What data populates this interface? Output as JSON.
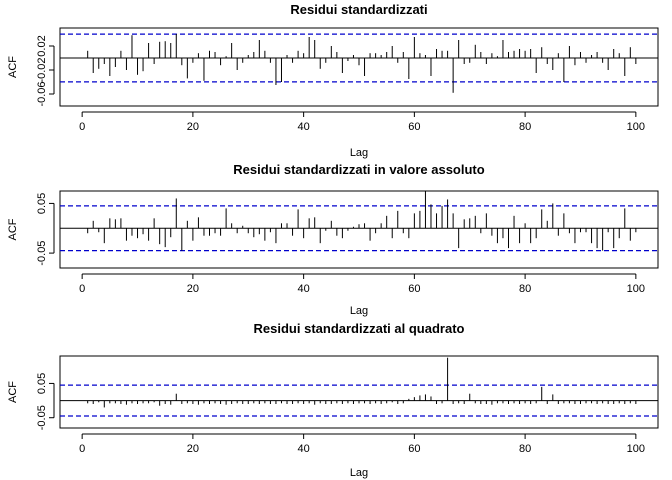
{
  "chart_data": [
    {
      "type": "bar",
      "title": "Residui standardizzati",
      "xlabel": "Lag",
      "ylabel": "ACF",
      "xlim": [
        -4,
        104
      ],
      "ylim": [
        -0.08,
        0.05
      ],
      "xticks": [
        0,
        20,
        40,
        60,
        80,
        100
      ],
      "yticks": [
        -0.06,
        -0.02,
        0.02
      ],
      "ytick_labels": [
        "-0.06",
        "-0.02",
        "0.02"
      ],
      "conf_band": 0.0398,
      "lags": [
        1,
        2,
        3,
        4,
        5,
        6,
        7,
        8,
        9,
        10,
        11,
        12,
        13,
        14,
        15,
        16,
        17,
        18,
        19,
        20,
        21,
        22,
        23,
        24,
        25,
        26,
        27,
        28,
        29,
        30,
        31,
        32,
        33,
        34,
        35,
        36,
        37,
        38,
        39,
        40,
        41,
        42,
        43,
        44,
        45,
        46,
        47,
        48,
        49,
        50,
        51,
        52,
        53,
        54,
        55,
        56,
        57,
        58,
        59,
        60,
        61,
        62,
        63,
        64,
        65,
        66,
        67,
        68,
        69,
        70,
        71,
        72,
        73,
        74,
        75,
        76,
        77,
        78,
        79,
        80,
        81,
        82,
        83,
        84,
        85,
        86,
        87,
        88,
        89,
        90,
        91,
        92,
        93,
        94,
        95,
        96,
        97,
        98,
        99,
        100
      ],
      "values": [
        0.012,
        -0.025,
        -0.018,
        -0.01,
        -0.03,
        -0.015,
        0.012,
        -0.02,
        0.038,
        -0.028,
        -0.022,
        0.025,
        -0.01,
        0.027,
        0.028,
        0.025,
        0.04,
        -0.012,
        -0.034,
        -0.008,
        0.008,
        -0.038,
        0.012,
        0.01,
        -0.012,
        0.003,
        0.025,
        -0.02,
        -0.008,
        0.005,
        0.01,
        0.03,
        0.012,
        -0.008,
        -0.045,
        -0.04,
        0.005,
        -0.008,
        0.012,
        0.008,
        0.035,
        0.03,
        -0.018,
        -0.008,
        0.02,
        0.01,
        -0.025,
        -0.005,
        0.005,
        -0.012,
        -0.03,
        0.008,
        0.008,
        0.005,
        0.01,
        0.02,
        -0.008,
        0.01,
        -0.035,
        0.035,
        0.008,
        0.005,
        -0.03,
        0.015,
        0.012,
        0.012,
        -0.058,
        0.03,
        -0.01,
        -0.008,
        0.022,
        0.01,
        -0.01,
        0.008,
        0.003,
        0.03,
        0.01,
        0.012,
        0.015,
        0.012,
        0.015,
        -0.025,
        0.018,
        -0.01,
        -0.02,
        0.008,
        -0.04,
        0.02,
        -0.012,
        0.01,
        -0.008,
        0.005,
        0.01,
        -0.008,
        -0.02,
        0.015,
        0.008,
        -0.03,
        0.018,
        -0.01
      ]
    },
    {
      "type": "bar",
      "title": "Residui standardizzati in valore assoluto",
      "xlabel": "Lag",
      "ylabel": "ACF",
      "xlim": [
        -4,
        104
      ],
      "ylim": [
        -0.08,
        0.075
      ],
      "xticks": [
        0,
        20,
        40,
        60,
        80,
        100
      ],
      "yticks": [
        -0.05,
        0.05
      ],
      "ytick_labels": [
        "-0.05",
        "0.05"
      ],
      "conf_band": 0.045,
      "lags": [
        1,
        2,
        3,
        4,
        5,
        6,
        7,
        8,
        9,
        10,
        11,
        12,
        13,
        14,
        15,
        16,
        17,
        18,
        19,
        20,
        21,
        22,
        23,
        24,
        25,
        26,
        27,
        28,
        29,
        30,
        31,
        32,
        33,
        34,
        35,
        36,
        37,
        38,
        39,
        40,
        41,
        42,
        43,
        44,
        45,
        46,
        47,
        48,
        49,
        50,
        51,
        52,
        53,
        54,
        55,
        56,
        57,
        58,
        59,
        60,
        61,
        62,
        63,
        64,
        65,
        66,
        67,
        68,
        69,
        70,
        71,
        72,
        73,
        74,
        75,
        76,
        77,
        78,
        79,
        80,
        81,
        82,
        83,
        84,
        85,
        86,
        87,
        88,
        89,
        90,
        91,
        92,
        93,
        94,
        95,
        96,
        97,
        98,
        99,
        100
      ],
      "values": [
        -0.01,
        0.015,
        -0.008,
        -0.03,
        0.02,
        0.018,
        0.02,
        -0.025,
        -0.015,
        -0.02,
        -0.012,
        -0.025,
        0.02,
        -0.032,
        -0.038,
        -0.018,
        0.06,
        -0.045,
        0.015,
        -0.025,
        0.022,
        -0.015,
        -0.015,
        -0.01,
        -0.015,
        0.04,
        0.01,
        -0.01,
        0.005,
        -0.01,
        -0.018,
        -0.012,
        -0.025,
        -0.008,
        -0.03,
        0.01,
        0.01,
        -0.015,
        0.038,
        -0.02,
        0.02,
        0.022,
        -0.03,
        -0.005,
        0.015,
        -0.015,
        -0.02,
        -0.005,
        0.003,
        0.008,
        0.01,
        -0.025,
        -0.01,
        0.01,
        0.025,
        -0.02,
        0.035,
        -0.01,
        -0.02,
        0.03,
        0.035,
        0.075,
        0.048,
        0.03,
        0.045,
        0.058,
        0.03,
        -0.04,
        0.018,
        0.02,
        0.025,
        -0.01,
        0.03,
        -0.015,
        -0.03,
        -0.02,
        -0.04,
        0.025,
        -0.03,
        0.01,
        -0.03,
        -0.02,
        0.038,
        0.015,
        0.05,
        -0.015,
        0.03,
        -0.01,
        -0.03,
        -0.008,
        -0.008,
        -0.03,
        -0.04,
        -0.045,
        -0.008,
        -0.04,
        -0.02,
        0.04,
        -0.025,
        -0.008
      ]
    },
    {
      "type": "bar",
      "title": "Residui standardizzati al quadrato",
      "xlabel": "Lag",
      "ylabel": "ACF",
      "xlim": [
        -4,
        104
      ],
      "ylim": [
        -0.08,
        0.13
      ],
      "xticks": [
        0,
        20,
        40,
        60,
        80,
        100
      ],
      "yticks": [
        -0.05,
        0.05
      ],
      "ytick_labels": [
        "-0.05",
        "0.05"
      ],
      "conf_band": 0.045,
      "lags": [
        1,
        2,
        3,
        4,
        5,
        6,
        7,
        8,
        9,
        10,
        11,
        12,
        13,
        14,
        15,
        16,
        17,
        18,
        19,
        20,
        21,
        22,
        23,
        24,
        25,
        26,
        27,
        28,
        29,
        30,
        31,
        32,
        33,
        34,
        35,
        36,
        37,
        38,
        39,
        40,
        41,
        42,
        43,
        44,
        45,
        46,
        47,
        48,
        49,
        50,
        51,
        52,
        53,
        54,
        55,
        56,
        57,
        58,
        59,
        60,
        61,
        62,
        63,
        64,
        65,
        66,
        67,
        68,
        69,
        70,
        71,
        72,
        73,
        74,
        75,
        76,
        77,
        78,
        79,
        80,
        81,
        82,
        83,
        84,
        85,
        86,
        87,
        88,
        89,
        90,
        91,
        92,
        93,
        94,
        95,
        96,
        97,
        98,
        99,
        100
      ],
      "values": [
        -0.008,
        -0.01,
        -0.005,
        -0.02,
        -0.008,
        -0.008,
        -0.01,
        -0.012,
        -0.008,
        -0.01,
        -0.008,
        -0.008,
        -0.005,
        -0.015,
        -0.01,
        -0.012,
        0.02,
        -0.01,
        -0.008,
        -0.01,
        -0.012,
        -0.008,
        -0.01,
        -0.008,
        -0.01,
        -0.012,
        -0.01,
        -0.008,
        -0.01,
        -0.01,
        -0.008,
        -0.01,
        -0.008,
        -0.01,
        -0.01,
        -0.008,
        -0.01,
        -0.01,
        -0.008,
        -0.01,
        -0.008,
        -0.012,
        -0.008,
        -0.01,
        -0.01,
        -0.008,
        -0.01,
        -0.008,
        -0.01,
        -0.008,
        -0.008,
        -0.01,
        -0.008,
        -0.01,
        -0.008,
        -0.005,
        -0.01,
        -0.008,
        0.005,
        0.01,
        0.015,
        0.018,
        0.012,
        -0.01,
        -0.008,
        0.125,
        -0.01,
        -0.008,
        -0.01,
        0.02,
        -0.008,
        -0.01,
        -0.01,
        -0.012,
        -0.008,
        -0.008,
        -0.01,
        -0.008,
        -0.01,
        -0.008,
        -0.01,
        -0.008,
        0.04,
        -0.01,
        0.018,
        -0.01,
        -0.008,
        -0.008,
        -0.01,
        -0.01,
        -0.008,
        -0.008,
        -0.01,
        -0.008,
        -0.01,
        -0.01,
        -0.008,
        -0.01,
        -0.008,
        -0.01
      ]
    }
  ]
}
